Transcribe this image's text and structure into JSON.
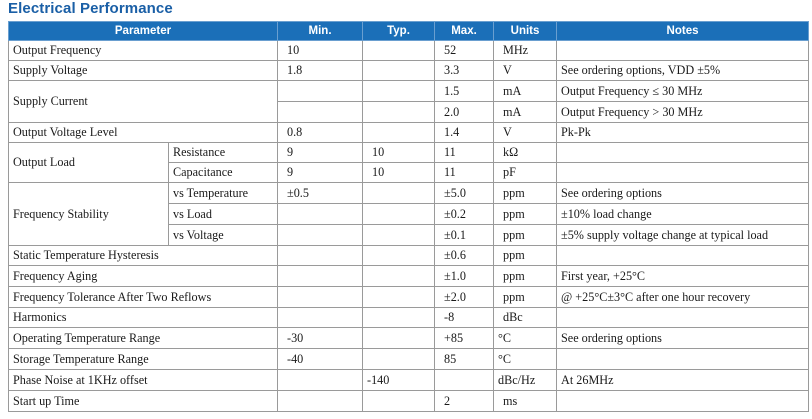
{
  "title": "Electrical Performance",
  "headers": {
    "parameter": "Parameter",
    "min": "Min.",
    "typ": "Typ.",
    "max": "Max.",
    "units": "Units",
    "notes": "Notes"
  },
  "rows": {
    "output_frequency": {
      "label": "Output Frequency",
      "min": "10",
      "typ": "",
      "max": "52",
      "units": "MHz",
      "notes": ""
    },
    "supply_voltage": {
      "label": "Supply Voltage",
      "min": "1.8",
      "typ": "",
      "max": "3.3",
      "units": "V",
      "notes": "See ordering options, VDD ±5%"
    },
    "supply_current": {
      "label": "Supply Current",
      "a": {
        "min": "",
        "typ": "",
        "max": "1.5",
        "units": "mA",
        "notes": "Output Frequency ≤ 30 MHz"
      },
      "b": {
        "min": "",
        "typ": "",
        "max": "2.0",
        "units": "mA",
        "notes": "Output Frequency > 30 MHz"
      }
    },
    "output_voltage_level": {
      "label": "Output Voltage Level",
      "min": "0.8",
      "typ": "",
      "max": "1.4",
      "units": "V",
      "notes": "Pk-Pk"
    },
    "output_load": {
      "label": "Output Load",
      "resistance": {
        "label": "Resistance",
        "min": "9",
        "typ": "10",
        "max": "11",
        "units": "kΩ",
        "notes": ""
      },
      "capacitance": {
        "label": "Capacitance",
        "min": "9",
        "typ": "10",
        "max": "11",
        "units": "pF",
        "notes": ""
      }
    },
    "frequency_stability": {
      "label": "Frequency Stability",
      "temperature": {
        "label": "vs Temperature",
        "min": "±0.5",
        "typ": "",
        "max": "±5.0",
        "units": "ppm",
        "notes": "See ordering options"
      },
      "load": {
        "label": "vs Load",
        "min": "",
        "typ": "",
        "max": "±0.2",
        "units": "ppm",
        "notes": "±10% load change"
      },
      "voltage": {
        "label": "vs Voltage",
        "min": "",
        "typ": "",
        "max": "±0.1",
        "units": "ppm",
        "notes": "±5% supply voltage change at typical load"
      }
    },
    "static_temp_hysteresis": {
      "label": "Static Temperature Hysteresis",
      "min": "",
      "typ": "",
      "max": "±0.6",
      "units": "ppm",
      "notes": ""
    },
    "frequency_aging": {
      "label": "Frequency Aging",
      "min": "",
      "typ": "",
      "max": "±1.0",
      "units": "ppm",
      "notes": "First year, +25°C"
    },
    "tolerance_after_reflows": {
      "label": "Frequency Tolerance After Two Reflows",
      "min": "",
      "typ": "",
      "max": "±2.0",
      "units": "ppm",
      "notes": "@ +25°C±3°C after one hour recovery"
    },
    "harmonics": {
      "label": "Harmonics",
      "min": "",
      "typ": "",
      "max": "-8",
      "units": "dBc",
      "notes": ""
    },
    "operating_temp_range": {
      "label": "Operating Temperature Range",
      "min": "-30",
      "typ": "",
      "max": "+85",
      "units": "°C",
      "notes": "See ordering options"
    },
    "storage_temp_range": {
      "label": "Storage Temperature Range",
      "min": "-40",
      "typ": "",
      "max": "85",
      "units": "°C",
      "notes": ""
    },
    "phase_noise": {
      "label": "Phase Noise at 1KHz offset",
      "min": "",
      "typ": "-140",
      "max": "",
      "units": "dBc/Hz",
      "notes": "At 26MHz"
    },
    "startup_time": {
      "label": "Start up Time",
      "min": "",
      "typ": "",
      "max": "2",
      "units": "ms",
      "notes": ""
    }
  }
}
